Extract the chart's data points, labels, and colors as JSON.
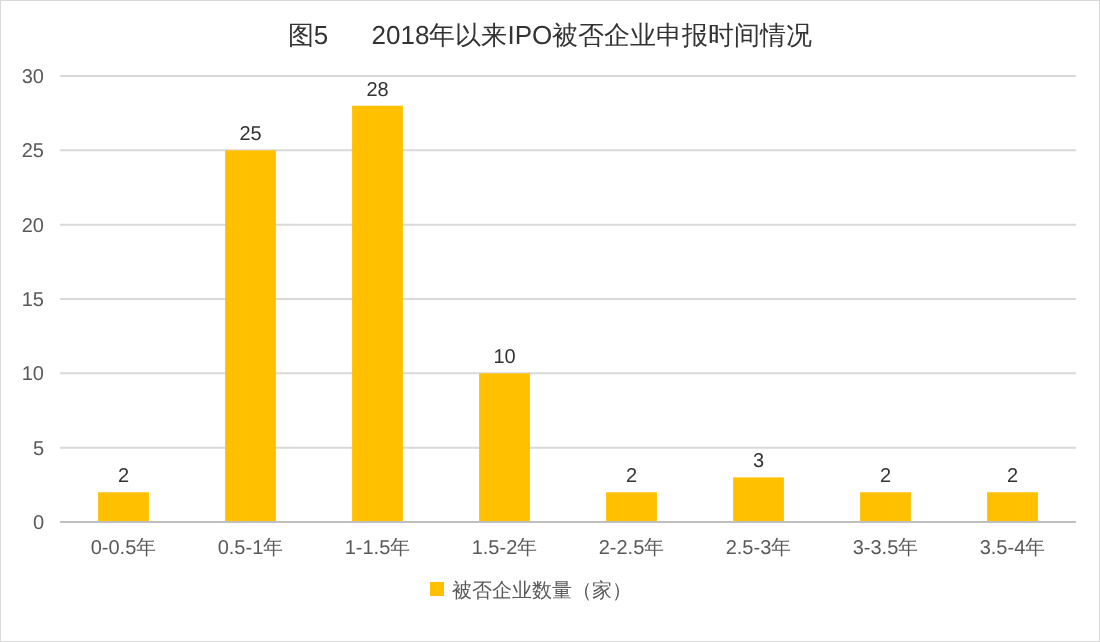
{
  "chart_data": {
    "type": "bar",
    "title": "图5      2018年以来IPO被否企业申报时间情况",
    "categories": [
      "0-0.5年",
      "0.5-1年",
      "1-1.5年",
      "1.5-2年",
      "2-2.5年",
      "2.5-3年",
      "3-3.5年",
      "3.5-4年"
    ],
    "series": [
      {
        "name": "被否企业数量（家）",
        "color": "#ffc000",
        "values": [
          2,
          25,
          28,
          10,
          2,
          3,
          2,
          2
        ]
      }
    ],
    "ylim": [
      0,
      30
    ],
    "yticks": [
      0,
      5,
      10,
      15,
      20,
      25,
      30
    ],
    "grid": "y",
    "legend": "bottom",
    "data_labels": true
  }
}
